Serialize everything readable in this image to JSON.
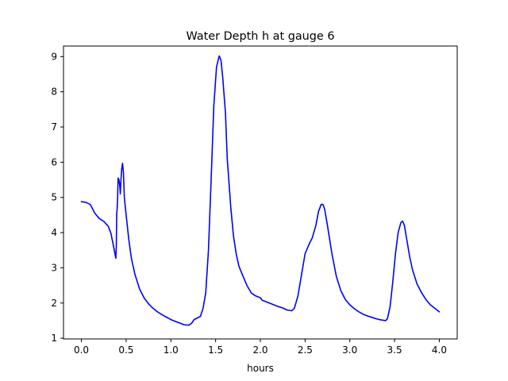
{
  "chart_data": {
    "type": "line",
    "title": "Water Depth h at gauge 6",
    "xlabel": "hours",
    "ylabel": "",
    "xlim": [
      -0.2,
      4.2
    ],
    "ylim": [
      0.98,
      9.3
    ],
    "xticks": [
      0.0,
      0.5,
      1.0,
      1.5,
      2.0,
      2.5,
      3.0,
      3.5,
      4.0
    ],
    "xtick_labels": [
      "0.0",
      "0.5",
      "1.0",
      "1.5",
      "2.0",
      "2.5",
      "3.0",
      "3.5",
      "4.0"
    ],
    "yticks": [
      1,
      2,
      3,
      4,
      5,
      6,
      7,
      8,
      9
    ],
    "ytick_labels": [
      "1",
      "2",
      "3",
      "4",
      "5",
      "6",
      "7",
      "8",
      "9"
    ],
    "grid": false,
    "legend": "none",
    "series": [
      {
        "color": "#0000ff",
        "points": [
          [
            0.0,
            4.88
          ],
          [
            0.05,
            4.86
          ],
          [
            0.1,
            4.8
          ],
          [
            0.15,
            4.55
          ],
          [
            0.2,
            4.4
          ],
          [
            0.25,
            4.32
          ],
          [
            0.3,
            4.18
          ],
          [
            0.33,
            3.98
          ],
          [
            0.36,
            3.6
          ],
          [
            0.385,
            3.27
          ],
          [
            0.39,
            3.6
          ],
          [
            0.395,
            4.55
          ],
          [
            0.4,
            4.7
          ],
          [
            0.405,
            5.0
          ],
          [
            0.41,
            5.55
          ],
          [
            0.42,
            5.5
          ],
          [
            0.43,
            5.3
          ],
          [
            0.435,
            5.1
          ],
          [
            0.44,
            5.4
          ],
          [
            0.45,
            5.8
          ],
          [
            0.46,
            5.97
          ],
          [
            0.47,
            5.7
          ],
          [
            0.48,
            5.0
          ],
          [
            0.5,
            4.5
          ],
          [
            0.53,
            3.8
          ],
          [
            0.56,
            3.25
          ],
          [
            0.6,
            2.8
          ],
          [
            0.65,
            2.4
          ],
          [
            0.7,
            2.15
          ],
          [
            0.75,
            1.98
          ],
          [
            0.8,
            1.85
          ],
          [
            0.85,
            1.75
          ],
          [
            0.9,
            1.67
          ],
          [
            0.95,
            1.6
          ],
          [
            1.0,
            1.53
          ],
          [
            1.05,
            1.48
          ],
          [
            1.1,
            1.43
          ],
          [
            1.15,
            1.38
          ],
          [
            1.2,
            1.37
          ],
          [
            1.23,
            1.42
          ],
          [
            1.26,
            1.53
          ],
          [
            1.3,
            1.58
          ],
          [
            1.33,
            1.62
          ],
          [
            1.36,
            1.85
          ],
          [
            1.39,
            2.3
          ],
          [
            1.42,
            3.5
          ],
          [
            1.45,
            5.5
          ],
          [
            1.48,
            7.6
          ],
          [
            1.51,
            8.7
          ],
          [
            1.54,
            9.02
          ],
          [
            1.56,
            8.9
          ],
          [
            1.58,
            8.4
          ],
          [
            1.61,
            7.4
          ],
          [
            1.63,
            6.1
          ],
          [
            1.65,
            5.4
          ],
          [
            1.67,
            4.7
          ],
          [
            1.7,
            3.9
          ],
          [
            1.73,
            3.4
          ],
          [
            1.76,
            3.05
          ],
          [
            1.8,
            2.8
          ],
          [
            1.85,
            2.5
          ],
          [
            1.9,
            2.28
          ],
          [
            1.95,
            2.2
          ],
          [
            2.0,
            2.15
          ],
          [
            2.02,
            2.08
          ],
          [
            2.05,
            2.05
          ],
          [
            2.1,
            2.0
          ],
          [
            2.15,
            1.95
          ],
          [
            2.2,
            1.9
          ],
          [
            2.25,
            1.86
          ],
          [
            2.3,
            1.8
          ],
          [
            2.35,
            1.78
          ],
          [
            2.38,
            1.85
          ],
          [
            2.42,
            2.2
          ],
          [
            2.46,
            2.8
          ],
          [
            2.5,
            3.4
          ],
          [
            2.55,
            3.7
          ],
          [
            2.58,
            3.85
          ],
          [
            2.62,
            4.2
          ],
          [
            2.65,
            4.6
          ],
          [
            2.68,
            4.8
          ],
          [
            2.7,
            4.8
          ],
          [
            2.72,
            4.65
          ],
          [
            2.75,
            4.2
          ],
          [
            2.8,
            3.4
          ],
          [
            2.85,
            2.75
          ],
          [
            2.9,
            2.35
          ],
          [
            2.95,
            2.1
          ],
          [
            3.0,
            1.95
          ],
          [
            3.05,
            1.84
          ],
          [
            3.1,
            1.75
          ],
          [
            3.15,
            1.68
          ],
          [
            3.2,
            1.63
          ],
          [
            3.25,
            1.59
          ],
          [
            3.3,
            1.55
          ],
          [
            3.35,
            1.52
          ],
          [
            3.4,
            1.5
          ],
          [
            3.42,
            1.55
          ],
          [
            3.45,
            1.9
          ],
          [
            3.48,
            2.6
          ],
          [
            3.51,
            3.4
          ],
          [
            3.54,
            4.0
          ],
          [
            3.57,
            4.28
          ],
          [
            3.59,
            4.33
          ],
          [
            3.61,
            4.2
          ],
          [
            3.64,
            3.75
          ],
          [
            3.67,
            3.3
          ],
          [
            3.7,
            2.95
          ],
          [
            3.75,
            2.55
          ],
          [
            3.8,
            2.3
          ],
          [
            3.85,
            2.1
          ],
          [
            3.9,
            1.95
          ],
          [
            3.95,
            1.85
          ],
          [
            4.0,
            1.75
          ]
        ]
      }
    ]
  }
}
